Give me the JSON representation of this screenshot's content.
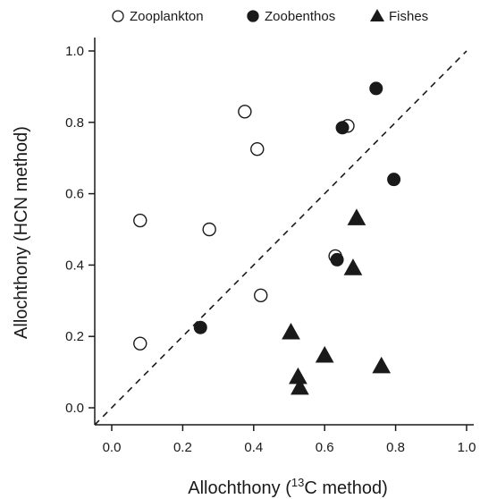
{
  "chart_data": {
    "type": "scatter",
    "xlabel_prefix": "Allochthony (",
    "xlabel_sup": "13",
    "xlabel_suffix": "C method)",
    "ylabel": "Allochthony (HCN method)",
    "xlim": [
      0.0,
      1.0
    ],
    "ylim": [
      0.0,
      1.0
    ],
    "xticks": [
      "0.0",
      "0.2",
      "0.4",
      "0.6",
      "0.8",
      "1.0"
    ],
    "yticks": [
      "0.0",
      "0.2",
      "0.4",
      "0.6",
      "0.8",
      "1.0"
    ],
    "grid": false,
    "legend_position": "top",
    "reference_line": "1:1 dashed",
    "series": [
      {
        "name": "Zooplankton",
        "marker": "open-circle",
        "points": [
          [
            0.08,
            0.18
          ],
          [
            0.08,
            0.525
          ],
          [
            0.275,
            0.5
          ],
          [
            0.375,
            0.83
          ],
          [
            0.41,
            0.725
          ],
          [
            0.42,
            0.315
          ],
          [
            0.63,
            0.425
          ],
          [
            0.665,
            0.79
          ]
        ]
      },
      {
        "name": "Zoobenthos",
        "marker": "filled-circle",
        "points": [
          [
            0.25,
            0.225
          ],
          [
            0.635,
            0.415
          ],
          [
            0.65,
            0.785
          ],
          [
            0.745,
            0.895
          ],
          [
            0.795,
            0.64
          ]
        ]
      },
      {
        "name": "Fishes",
        "marker": "filled-triangle",
        "points": [
          [
            0.505,
            0.21
          ],
          [
            0.525,
            0.085
          ],
          [
            0.53,
            0.055
          ],
          [
            0.6,
            0.145
          ],
          [
            0.68,
            0.39
          ],
          [
            0.69,
            0.53
          ],
          [
            0.76,
            0.115
          ]
        ]
      }
    ]
  },
  "colors": {
    "ink": "#1a1a1a",
    "background": "#ffffff"
  }
}
